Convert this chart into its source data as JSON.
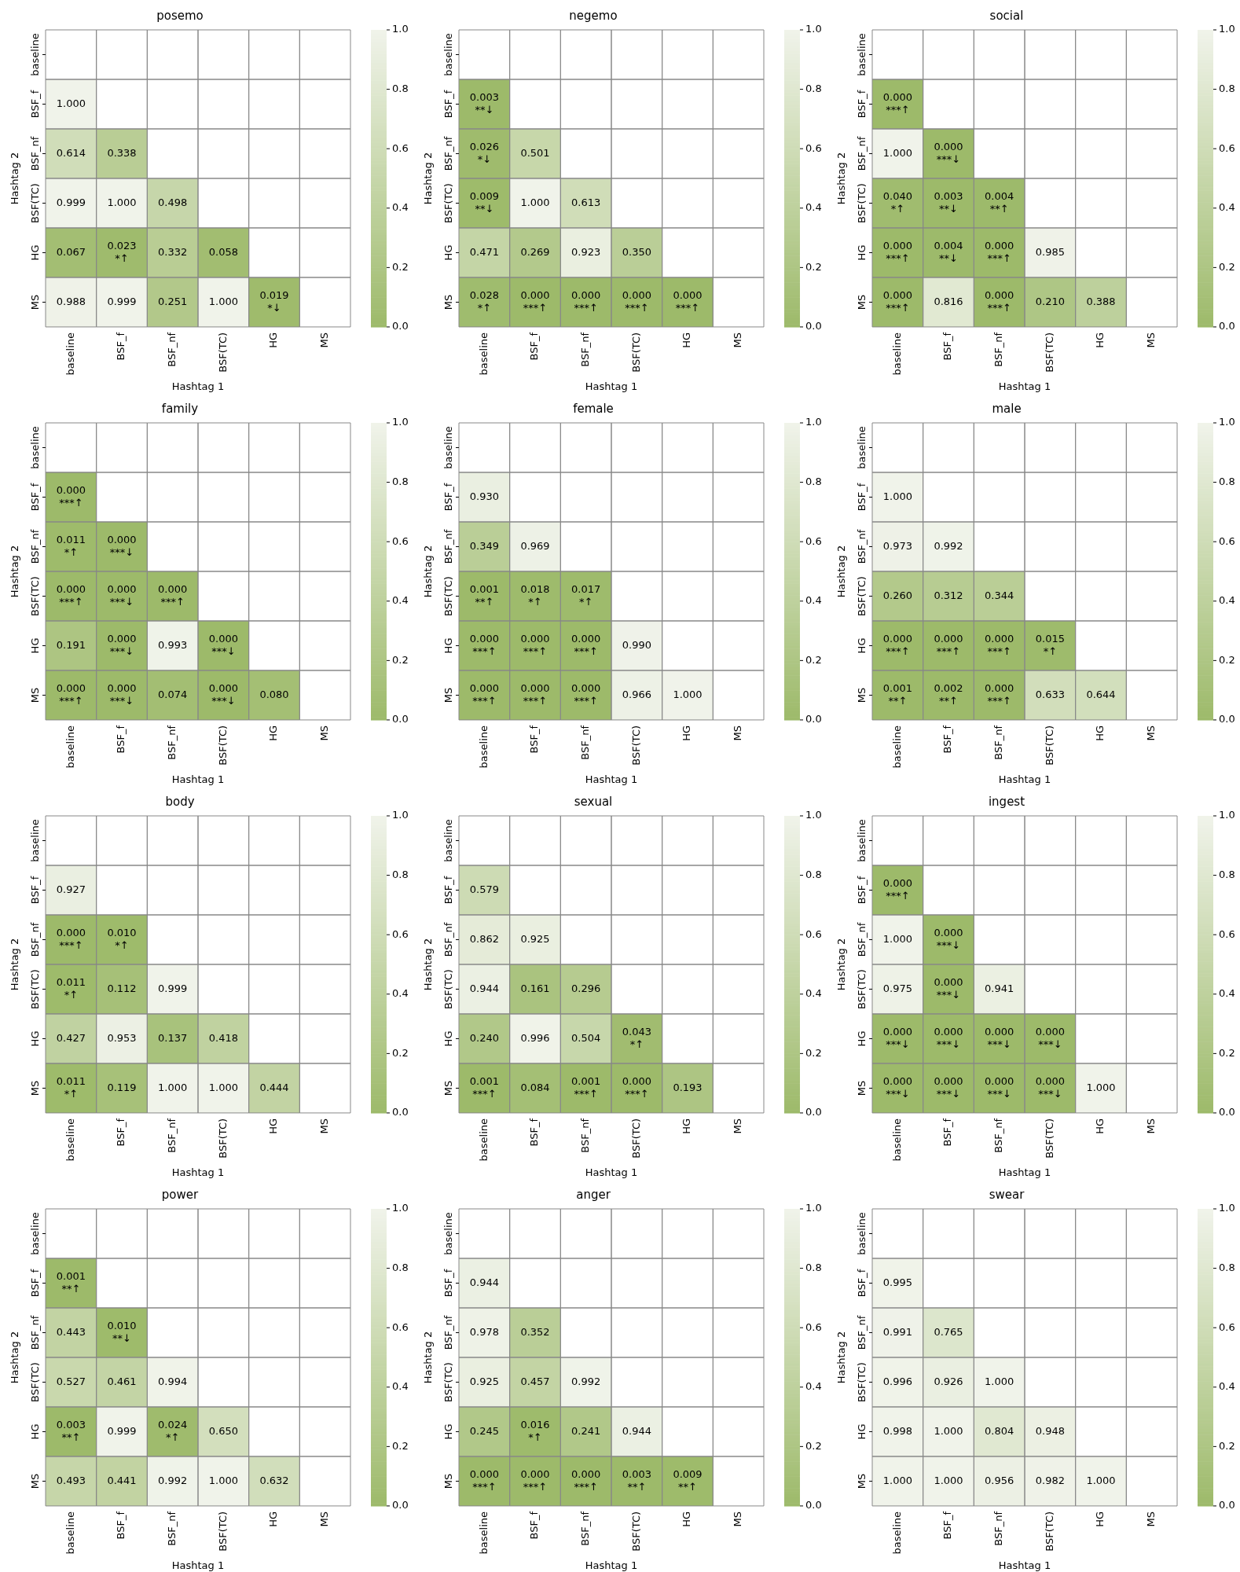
{
  "chart_data": [
    {
      "type": "heatmap",
      "title": "posemo",
      "xlabel": "Hashtag 1",
      "ylabel": "Hashtag 2",
      "categories": [
        "baseline",
        "BSF_f",
        "BSF_nf",
        "BSF(TC)",
        "HG",
        "MS"
      ],
      "y_categories": [
        "baseline",
        "BSF_f",
        "BSF_nf",
        "BSF(TC)",
        "HG",
        "MS"
      ],
      "cells": [
        [
          null,
          null,
          null,
          null,
          null,
          null
        ],
        [
          1.0,
          null,
          null,
          null,
          null,
          null
        ],
        [
          0.614,
          0.338,
          null,
          null,
          null,
          null
        ],
        [
          0.999,
          1.0,
          0.498,
          null,
          null,
          null
        ],
        [
          0.067,
          0.023,
          0.332,
          0.058,
          null,
          null
        ],
        [
          0.988,
          0.999,
          0.251,
          1.0,
          0.019,
          null
        ]
      ],
      "cell_labels": [
        [
          null,
          null,
          null,
          null,
          null,
          null
        ],
        [
          "1.000",
          null,
          null,
          null,
          null,
          null
        ],
        [
          "0.614",
          "0.338",
          null,
          null,
          null,
          null
        ],
        [
          "0.999",
          "1.000",
          "0.498",
          null,
          null,
          null
        ],
        [
          "0.067",
          "0.023\n*↑",
          "0.332",
          "0.058",
          null,
          null
        ],
        [
          "0.988",
          "0.999",
          "0.251",
          "1.000",
          "0.019\n*↓",
          null
        ]
      ],
      "clim": [
        0,
        1
      ],
      "cticks": [
        {
          "value": 0,
          "label": "0.0"
        },
        {
          "value": 0.2,
          "label": "0.2"
        },
        {
          "value": 0.4,
          "label": "0.4"
        },
        {
          "value": 0.6,
          "label": "0.6"
        },
        {
          "value": 0.8,
          "label": "0.8"
        },
        {
          "value": 1,
          "label": "1.0"
        }
      ],
      "colors": [
        "#9dba6a",
        "#f0f3ea"
      ]
    },
    {
      "type": "heatmap",
      "title": "negemo",
      "xlabel": "Hashtag 1",
      "ylabel": "Hashtag 2",
      "categories": [
        "baseline",
        "BSF_f",
        "BSF_nf",
        "BSF(TC)",
        "HG",
        "MS"
      ],
      "y_categories": [
        "baseline",
        "BSF_f",
        "BSF_nf",
        "BSF(TC)",
        "HG",
        "MS"
      ],
      "cells": [
        [
          null,
          null,
          null,
          null,
          null,
          null
        ],
        [
          0.003,
          null,
          null,
          null,
          null,
          null
        ],
        [
          0.026,
          0.501,
          null,
          null,
          null,
          null
        ],
        [
          0.009,
          1.0,
          0.613,
          null,
          null,
          null
        ],
        [
          0.471,
          0.269,
          0.923,
          0.35,
          null,
          null
        ],
        [
          0.028,
          0.0,
          0.0,
          0.0,
          0.0,
          null
        ]
      ],
      "cell_labels": [
        [
          null,
          null,
          null,
          null,
          null,
          null
        ],
        [
          "0.003\n**↓",
          null,
          null,
          null,
          null,
          null
        ],
        [
          "0.026\n*↓",
          "0.501",
          null,
          null,
          null,
          null
        ],
        [
          "0.009\n**↓",
          "1.000",
          "0.613",
          null,
          null,
          null
        ],
        [
          "0.471",
          "0.269",
          "0.923",
          "0.350",
          null,
          null
        ],
        [
          "0.028\n*↑",
          "0.000\n***↑",
          "0.000\n***↑",
          "0.000\n***↑",
          "0.000\n***↑",
          null
        ]
      ],
      "clim": [
        0,
        1
      ],
      "cticks": [
        {
          "value": 0,
          "label": "0.0"
        },
        {
          "value": 0.2,
          "label": "0.2"
        },
        {
          "value": 0.4,
          "label": "0.4"
        },
        {
          "value": 0.6,
          "label": "0.6"
        },
        {
          "value": 0.8,
          "label": "0.8"
        },
        {
          "value": 1,
          "label": "1.0"
        }
      ],
      "colors": [
        "#9dba6a",
        "#f0f3ea"
      ]
    },
    {
      "type": "heatmap",
      "title": "social",
      "xlabel": "Hashtag 1",
      "ylabel": "Hashtag 2",
      "categories": [
        "baseline",
        "BSF_f",
        "BSF_nf",
        "BSF(TC)",
        "HG",
        "MS"
      ],
      "y_categories": [
        "baseline",
        "BSF_f",
        "BSF_nf",
        "BSF(TC)",
        "HG",
        "MS"
      ],
      "cells": [
        [
          null,
          null,
          null,
          null,
          null,
          null
        ],
        [
          0.0,
          null,
          null,
          null,
          null,
          null
        ],
        [
          1.0,
          0.0,
          null,
          null,
          null,
          null
        ],
        [
          0.04,
          0.003,
          0.004,
          null,
          null,
          null
        ],
        [
          0.0,
          0.004,
          0.0,
          0.985,
          null,
          null
        ],
        [
          0.0,
          0.816,
          0.0,
          0.21,
          0.388,
          null
        ]
      ],
      "cell_labels": [
        [
          null,
          null,
          null,
          null,
          null,
          null
        ],
        [
          "0.000\n***↑",
          null,
          null,
          null,
          null,
          null
        ],
        [
          "1.000",
          "0.000\n***↓",
          null,
          null,
          null,
          null
        ],
        [
          "0.040\n*↑",
          "0.003\n**↓",
          "0.004\n**↑",
          null,
          null,
          null
        ],
        [
          "0.000\n***↑",
          "0.004\n**↓",
          "0.000\n***↑",
          "0.985",
          null,
          null
        ],
        [
          "0.000\n***↑",
          "0.816",
          "0.000\n***↑",
          "0.210",
          "0.388",
          null
        ]
      ],
      "clim": [
        0,
        1
      ],
      "cticks": [
        {
          "value": 0,
          "label": "0.0"
        },
        {
          "value": 0.2,
          "label": "0.2"
        },
        {
          "value": 0.4,
          "label": "0.4"
        },
        {
          "value": 0.6,
          "label": "0.6"
        },
        {
          "value": 0.8,
          "label": "0.8"
        },
        {
          "value": 1,
          "label": "1.0"
        }
      ],
      "colors": [
        "#9dba6a",
        "#f0f3ea"
      ]
    },
    {
      "type": "heatmap",
      "title": "family",
      "xlabel": "Hashtag 1",
      "ylabel": "Hashtag 2",
      "categories": [
        "baseline",
        "BSF_f",
        "BSF_nf",
        "BSF(TC)",
        "HG",
        "MS"
      ],
      "y_categories": [
        "baseline",
        "BSF_f",
        "BSF_nf",
        "BSF(TC)",
        "HG",
        "MS"
      ],
      "cells": [
        [
          null,
          null,
          null,
          null,
          null,
          null
        ],
        [
          0.0,
          null,
          null,
          null,
          null,
          null
        ],
        [
          0.011,
          0.0,
          null,
          null,
          null,
          null
        ],
        [
          0.0,
          0.0,
          0.0,
          null,
          null,
          null
        ],
        [
          0.191,
          0.0,
          0.993,
          0.0,
          null,
          null
        ],
        [
          0.0,
          0.0,
          0.074,
          0.0,
          0.08,
          null
        ]
      ],
      "cell_labels": [
        [
          null,
          null,
          null,
          null,
          null,
          null
        ],
        [
          "0.000\n***↑",
          null,
          null,
          null,
          null,
          null
        ],
        [
          "0.011\n*↑",
          "0.000\n***↓",
          null,
          null,
          null,
          null
        ],
        [
          "0.000\n***↑",
          "0.000\n***↓",
          "0.000\n***↑",
          null,
          null,
          null
        ],
        [
          "0.191",
          "0.000\n***↓",
          "0.993",
          "0.000\n***↓",
          null,
          null
        ],
        [
          "0.000\n***↑",
          "0.000\n***↓",
          "0.074",
          "0.000\n***↓",
          "0.080",
          null
        ]
      ],
      "clim": [
        0,
        1
      ],
      "cticks": [
        {
          "value": 0,
          "label": "0.0"
        },
        {
          "value": 0.2,
          "label": "0.2"
        },
        {
          "value": 0.4,
          "label": "0.4"
        },
        {
          "value": 0.6,
          "label": "0.6"
        },
        {
          "value": 0.8,
          "label": "0.8"
        },
        {
          "value": 1,
          "label": "1.0"
        }
      ],
      "colors": [
        "#9dba6a",
        "#f0f3ea"
      ]
    },
    {
      "type": "heatmap",
      "title": "female",
      "xlabel": "Hashtag 1",
      "ylabel": "Hashtag 2",
      "categories": [
        "baseline",
        "BSF_f",
        "BSF_nf",
        "BSF(TC)",
        "HG",
        "MS"
      ],
      "y_categories": [
        "baseline",
        "BSF_f",
        "BSF_nf",
        "BSF(TC)",
        "HG",
        "MS"
      ],
      "cells": [
        [
          null,
          null,
          null,
          null,
          null,
          null
        ],
        [
          0.93,
          null,
          null,
          null,
          null,
          null
        ],
        [
          0.349,
          0.969,
          null,
          null,
          null,
          null
        ],
        [
          0.001,
          0.018,
          0.017,
          null,
          null,
          null
        ],
        [
          0.0,
          0.0,
          0.0,
          0.99,
          null,
          null
        ],
        [
          0.0,
          0.0,
          0.0,
          0.966,
          1.0,
          null
        ]
      ],
      "cell_labels": [
        [
          null,
          null,
          null,
          null,
          null,
          null
        ],
        [
          "0.930",
          null,
          null,
          null,
          null,
          null
        ],
        [
          "0.349",
          "0.969",
          null,
          null,
          null,
          null
        ],
        [
          "0.001\n**↑",
          "0.018\n*↑",
          "0.017\n*↑",
          null,
          null,
          null
        ],
        [
          "0.000\n***↑",
          "0.000\n***↑",
          "0.000\n***↑",
          "0.990",
          null,
          null
        ],
        [
          "0.000\n***↑",
          "0.000\n***↑",
          "0.000\n***↑",
          "0.966",
          "1.000",
          null
        ]
      ],
      "clim": [
        0,
        1
      ],
      "cticks": [
        {
          "value": 0,
          "label": "0.0"
        },
        {
          "value": 0.2,
          "label": "0.2"
        },
        {
          "value": 0.4,
          "label": "0.4"
        },
        {
          "value": 0.6,
          "label": "0.6"
        },
        {
          "value": 0.8,
          "label": "0.8"
        },
        {
          "value": 1,
          "label": "1.0"
        }
      ],
      "colors": [
        "#9dba6a",
        "#f0f3ea"
      ]
    },
    {
      "type": "heatmap",
      "title": "male",
      "xlabel": "Hashtag 1",
      "ylabel": "Hashtag 2",
      "categories": [
        "baseline",
        "BSF_f",
        "BSF_nf",
        "BSF(TC)",
        "HG",
        "MS"
      ],
      "y_categories": [
        "baseline",
        "BSF_f",
        "BSF_nf",
        "BSF(TC)",
        "HG",
        "MS"
      ],
      "cells": [
        [
          null,
          null,
          null,
          null,
          null,
          null
        ],
        [
          1.0,
          null,
          null,
          null,
          null,
          null
        ],
        [
          0.973,
          0.992,
          null,
          null,
          null,
          null
        ],
        [
          0.26,
          0.312,
          0.344,
          null,
          null,
          null
        ],
        [
          0.0,
          0.0,
          0.0,
          0.015,
          null,
          null
        ],
        [
          0.001,
          0.002,
          0.0,
          0.633,
          0.644,
          null
        ]
      ],
      "cell_labels": [
        [
          null,
          null,
          null,
          null,
          null,
          null
        ],
        [
          "1.000",
          null,
          null,
          null,
          null,
          null
        ],
        [
          "0.973",
          "0.992",
          null,
          null,
          null,
          null
        ],
        [
          "0.260",
          "0.312",
          "0.344",
          null,
          null,
          null
        ],
        [
          "0.000\n***↑",
          "0.000\n***↑",
          "0.000\n***↑",
          "0.015\n*↑",
          null,
          null
        ],
        [
          "0.001\n**↑",
          "0.002\n**↑",
          "0.000\n***↑",
          "0.633",
          "0.644",
          null
        ]
      ],
      "clim": [
        0,
        1
      ],
      "cticks": [
        {
          "value": 0,
          "label": "0.0"
        },
        {
          "value": 0.2,
          "label": "0.2"
        },
        {
          "value": 0.4,
          "label": "0.4"
        },
        {
          "value": 0.6,
          "label": "0.6"
        },
        {
          "value": 0.8,
          "label": "0.8"
        },
        {
          "value": 1,
          "label": "1.0"
        }
      ],
      "colors": [
        "#9dba6a",
        "#f0f3ea"
      ]
    },
    {
      "type": "heatmap",
      "title": "body",
      "xlabel": "Hashtag 1",
      "ylabel": "Hashtag 2",
      "categories": [
        "baseline",
        "BSF_f",
        "BSF_nf",
        "BSF(TC)",
        "HG",
        "MS"
      ],
      "y_categories": [
        "baseline",
        "BSF_f",
        "BSF_nf",
        "BSF(TC)",
        "HG",
        "MS"
      ],
      "cells": [
        [
          null,
          null,
          null,
          null,
          null,
          null
        ],
        [
          0.927,
          null,
          null,
          null,
          null,
          null
        ],
        [
          0.0,
          0.01,
          null,
          null,
          null,
          null
        ],
        [
          0.011,
          0.112,
          0.999,
          null,
          null,
          null
        ],
        [
          0.427,
          0.953,
          0.137,
          0.418,
          null,
          null
        ],
        [
          0.011,
          0.119,
          1.0,
          1.0,
          0.444,
          null
        ]
      ],
      "cell_labels": [
        [
          null,
          null,
          null,
          null,
          null,
          null
        ],
        [
          "0.927",
          null,
          null,
          null,
          null,
          null
        ],
        [
          "0.000\n***↑",
          "0.010\n*↑",
          null,
          null,
          null,
          null
        ],
        [
          "0.011\n*↑",
          "0.112",
          "0.999",
          null,
          null,
          null
        ],
        [
          "0.427",
          "0.953",
          "0.137",
          "0.418",
          null,
          null
        ],
        [
          "0.011\n*↑",
          "0.119",
          "1.000",
          "1.000",
          "0.444",
          null
        ]
      ],
      "clim": [
        0,
        1
      ],
      "cticks": [
        {
          "value": 0,
          "label": "0.0"
        },
        {
          "value": 0.2,
          "label": "0.2"
        },
        {
          "value": 0.4,
          "label": "0.4"
        },
        {
          "value": 0.6,
          "label": "0.6"
        },
        {
          "value": 0.8,
          "label": "0.8"
        },
        {
          "value": 1,
          "label": "1.0"
        }
      ],
      "colors": [
        "#9dba6a",
        "#f0f3ea"
      ]
    },
    {
      "type": "heatmap",
      "title": "sexual",
      "xlabel": "Hashtag 1",
      "ylabel": "Hashtag 2",
      "categories": [
        "baseline",
        "BSF_f",
        "BSF_nf",
        "BSF(TC)",
        "HG",
        "MS"
      ],
      "y_categories": [
        "baseline",
        "BSF_f",
        "BSF_nf",
        "BSF(TC)",
        "HG",
        "MS"
      ],
      "cells": [
        [
          null,
          null,
          null,
          null,
          null,
          null
        ],
        [
          0.579,
          null,
          null,
          null,
          null,
          null
        ],
        [
          0.862,
          0.925,
          null,
          null,
          null,
          null
        ],
        [
          0.944,
          0.161,
          0.296,
          null,
          null,
          null
        ],
        [
          0.24,
          0.996,
          0.504,
          0.043,
          null,
          null
        ],
        [
          0.001,
          0.084,
          0.001,
          0.0,
          0.193,
          null
        ]
      ],
      "cell_labels": [
        [
          null,
          null,
          null,
          null,
          null,
          null
        ],
        [
          "0.579",
          null,
          null,
          null,
          null,
          null
        ],
        [
          "0.862",
          "0.925",
          null,
          null,
          null,
          null
        ],
        [
          "0.944",
          "0.161",
          "0.296",
          null,
          null,
          null
        ],
        [
          "0.240",
          "0.996",
          "0.504",
          "0.043\n*↑",
          null,
          null
        ],
        [
          "0.001\n***↑",
          "0.084",
          "0.001\n***↑",
          "0.000\n***↑",
          "0.193",
          null
        ]
      ],
      "clim": [
        0,
        1
      ],
      "cticks": [
        {
          "value": 0,
          "label": "0.0"
        },
        {
          "value": 0.2,
          "label": "0.2"
        },
        {
          "value": 0.4,
          "label": "0.4"
        },
        {
          "value": 0.6,
          "label": "0.6"
        },
        {
          "value": 0.8,
          "label": "0.8"
        },
        {
          "value": 1,
          "label": "1.0"
        }
      ],
      "colors": [
        "#9dba6a",
        "#f0f3ea"
      ]
    },
    {
      "type": "heatmap",
      "title": "ingest",
      "xlabel": "Hashtag 1",
      "ylabel": "Hashtag 2",
      "categories": [
        "baseline",
        "BSF_f",
        "BSF_nf",
        "BSF(TC)",
        "HG",
        "MS"
      ],
      "y_categories": [
        "baseline",
        "BSF_f",
        "BSF_nf",
        "BSF(TC)",
        "HG",
        "MS"
      ],
      "cells": [
        [
          null,
          null,
          null,
          null,
          null,
          null
        ],
        [
          0.0,
          null,
          null,
          null,
          null,
          null
        ],
        [
          1.0,
          0.0,
          null,
          null,
          null,
          null
        ],
        [
          0.975,
          0.0,
          0.941,
          null,
          null,
          null
        ],
        [
          0.0,
          0.0,
          0.0,
          0.0,
          null,
          null
        ],
        [
          0.0,
          0.0,
          0.0,
          0.0,
          1.0,
          null
        ]
      ],
      "cell_labels": [
        [
          null,
          null,
          null,
          null,
          null,
          null
        ],
        [
          "0.000\n***↑",
          null,
          null,
          null,
          null,
          null
        ],
        [
          "1.000",
          "0.000\n***↓",
          null,
          null,
          null,
          null
        ],
        [
          "0.975",
          "0.000\n***↓",
          "0.941",
          null,
          null,
          null
        ],
        [
          "0.000\n***↓",
          "0.000\n***↓",
          "0.000\n***↓",
          "0.000\n***↓",
          null,
          null
        ],
        [
          "0.000\n***↓",
          "0.000\n***↓",
          "0.000\n***↓",
          "0.000\n***↓",
          "1.000",
          null
        ]
      ],
      "clim": [
        0,
        1
      ],
      "cticks": [
        {
          "value": 0,
          "label": "0.0"
        },
        {
          "value": 0.2,
          "label": "0.2"
        },
        {
          "value": 0.4,
          "label": "0.4"
        },
        {
          "value": 0.6,
          "label": "0.6"
        },
        {
          "value": 0.8,
          "label": "0.8"
        },
        {
          "value": 1,
          "label": "1.0"
        }
      ],
      "colors": [
        "#9dba6a",
        "#f0f3ea"
      ]
    },
    {
      "type": "heatmap",
      "title": "power",
      "xlabel": "Hashtag 1",
      "ylabel": "Hashtag 2",
      "categories": [
        "baseline",
        "BSF_f",
        "BSF_nf",
        "BSF(TC)",
        "HG",
        "MS"
      ],
      "y_categories": [
        "baseline",
        "BSF_f",
        "BSF_nf",
        "BSF(TC)",
        "HG",
        "MS"
      ],
      "cells": [
        [
          null,
          null,
          null,
          null,
          null,
          null
        ],
        [
          0.001,
          null,
          null,
          null,
          null,
          null
        ],
        [
          0.443,
          0.01,
          null,
          null,
          null,
          null
        ],
        [
          0.527,
          0.461,
          0.994,
          null,
          null,
          null
        ],
        [
          0.003,
          0.999,
          0.024,
          0.65,
          null,
          null
        ],
        [
          0.493,
          0.441,
          0.992,
          1.0,
          0.632,
          null
        ]
      ],
      "cell_labels": [
        [
          null,
          null,
          null,
          null,
          null,
          null
        ],
        [
          "0.001\n**↑",
          null,
          null,
          null,
          null,
          null
        ],
        [
          "0.443",
          "0.010\n**↓",
          null,
          null,
          null,
          null
        ],
        [
          "0.527",
          "0.461",
          "0.994",
          null,
          null,
          null
        ],
        [
          "0.003\n**↑",
          "0.999",
          "0.024\n*↑",
          "0.650",
          null,
          null
        ],
        [
          "0.493",
          "0.441",
          "0.992",
          "1.000",
          "0.632",
          null
        ]
      ],
      "clim": [
        0,
        1
      ],
      "cticks": [
        {
          "value": 0,
          "label": "0.0"
        },
        {
          "value": 0.2,
          "label": "0.2"
        },
        {
          "value": 0.4,
          "label": "0.4"
        },
        {
          "value": 0.6,
          "label": "0.6"
        },
        {
          "value": 0.8,
          "label": "0.8"
        },
        {
          "value": 1,
          "label": "1.0"
        }
      ],
      "colors": [
        "#9dba6a",
        "#f0f3ea"
      ]
    },
    {
      "type": "heatmap",
      "title": "anger",
      "xlabel": "Hashtag 1",
      "ylabel": "Hashtag 2",
      "categories": [
        "baseline",
        "BSF_f",
        "BSF_nf",
        "BSF(TC)",
        "HG",
        "MS"
      ],
      "y_categories": [
        "baseline",
        "BSF_f",
        "BSF_nf",
        "BSF(TC)",
        "HG",
        "MS"
      ],
      "cells": [
        [
          null,
          null,
          null,
          null,
          null,
          null
        ],
        [
          0.944,
          null,
          null,
          null,
          null,
          null
        ],
        [
          0.978,
          0.352,
          null,
          null,
          null,
          null
        ],
        [
          0.925,
          0.457,
          0.992,
          null,
          null,
          null
        ],
        [
          0.245,
          0.016,
          0.241,
          0.944,
          null,
          null
        ],
        [
          0.0,
          0.0,
          0.0,
          0.003,
          0.009,
          null
        ]
      ],
      "cell_labels": [
        [
          null,
          null,
          null,
          null,
          null,
          null
        ],
        [
          "0.944",
          null,
          null,
          null,
          null,
          null
        ],
        [
          "0.978",
          "0.352",
          null,
          null,
          null,
          null
        ],
        [
          "0.925",
          "0.457",
          "0.992",
          null,
          null,
          null
        ],
        [
          "0.245",
          "0.016\n*↑",
          "0.241",
          "0.944",
          null,
          null
        ],
        [
          "0.000\n***↑",
          "0.000\n***↑",
          "0.000\n***↑",
          "0.003\n**↑",
          "0.009\n**↑",
          null
        ]
      ],
      "clim": [
        0,
        1
      ],
      "cticks": [
        {
          "value": 0,
          "label": "0.0"
        },
        {
          "value": 0.2,
          "label": "0.2"
        },
        {
          "value": 0.4,
          "label": "0.4"
        },
        {
          "value": 0.6,
          "label": "0.6"
        },
        {
          "value": 0.8,
          "label": "0.8"
        },
        {
          "value": 1,
          "label": "1.0"
        }
      ],
      "colors": [
        "#9dba6a",
        "#f0f3ea"
      ]
    },
    {
      "type": "heatmap",
      "title": "swear",
      "xlabel": "Hashtag 1",
      "ylabel": "Hashtag 2",
      "categories": [
        "baseline",
        "BSF_f",
        "BSF_nf",
        "BSF(TC)",
        "HG",
        "MS"
      ],
      "y_categories": [
        "baseline",
        "BSF_f",
        "BSF_nf",
        "BSF(TC)",
        "HG",
        "MS"
      ],
      "cells": [
        [
          null,
          null,
          null,
          null,
          null,
          null
        ],
        [
          0.995,
          null,
          null,
          null,
          null,
          null
        ],
        [
          0.991,
          0.765,
          null,
          null,
          null,
          null
        ],
        [
          0.996,
          0.926,
          1.0,
          null,
          null,
          null
        ],
        [
          0.998,
          1.0,
          0.804,
          0.948,
          null,
          null
        ],
        [
          1.0,
          1.0,
          0.956,
          0.982,
          1.0,
          null
        ]
      ],
      "cell_labels": [
        [
          null,
          null,
          null,
          null,
          null,
          null
        ],
        [
          "0.995",
          null,
          null,
          null,
          null,
          null
        ],
        [
          "0.991",
          "0.765",
          null,
          null,
          null,
          null
        ],
        [
          "0.996",
          "0.926",
          "1.000",
          null,
          null,
          null
        ],
        [
          "0.998",
          "1.000",
          "0.804",
          "0.948",
          null,
          null
        ],
        [
          "1.000",
          "1.000",
          "0.956",
          "0.982",
          "1.000",
          null
        ]
      ],
      "clim": [
        0,
        1
      ],
      "cticks": [
        {
          "value": 0,
          "label": "0.0"
        },
        {
          "value": 0.2,
          "label": "0.2"
        },
        {
          "value": 0.4,
          "label": "0.4"
        },
        {
          "value": 0.6,
          "label": "0.6"
        },
        {
          "value": 0.8,
          "label": "0.8"
        },
        {
          "value": 1,
          "label": "1.0"
        }
      ],
      "colors": [
        "#9dba6a",
        "#f0f3ea"
      ]
    }
  ]
}
